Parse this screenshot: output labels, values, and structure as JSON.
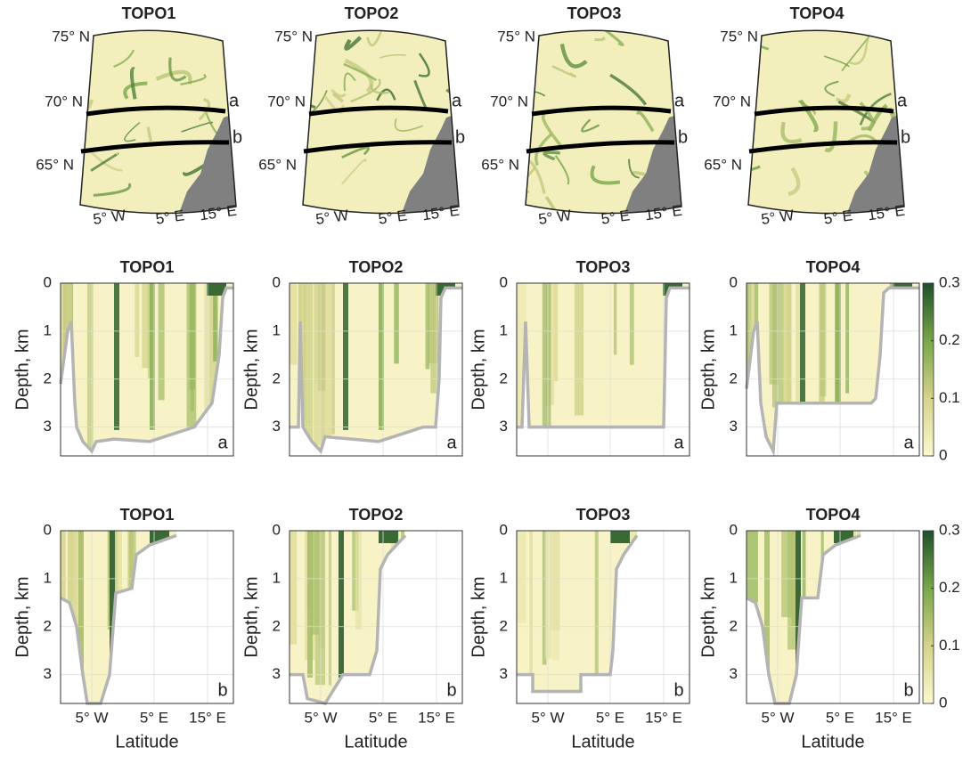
{
  "maps": {
    "titles": [
      "TOPO1",
      "TOPO2",
      "TOPO3",
      "TOPO4"
    ],
    "lat_labels": [
      "75° N",
      "70° N",
      "65° N"
    ],
    "lon_labels": [
      "5° W",
      "5° E",
      "15° E"
    ],
    "section_labels": [
      "a",
      "b"
    ]
  },
  "sections": [
    {
      "panel_label": "a",
      "titles": [
        "TOPO1",
        "TOPO2",
        "TOPO3",
        "TOPO4"
      ]
    },
    {
      "panel_label": "b",
      "titles": [
        "TOPO1",
        "TOPO2",
        "TOPO3",
        "TOPO4"
      ]
    }
  ],
  "y_axis_label": "Depth, km",
  "depth_lim": [
    0,
    3.6
  ],
  "depth_ticks": [
    0,
    1,
    2,
    3
  ],
  "x_tick_labels": [
    "5° W",
    "5° E",
    "15° E"
  ],
  "x_axis_label": "Latitude",
  "colorbar": {
    "lim": [
      0,
      0.3
    ],
    "ticks": [
      0,
      0.1,
      0.2,
      0.3
    ]
  }
}
